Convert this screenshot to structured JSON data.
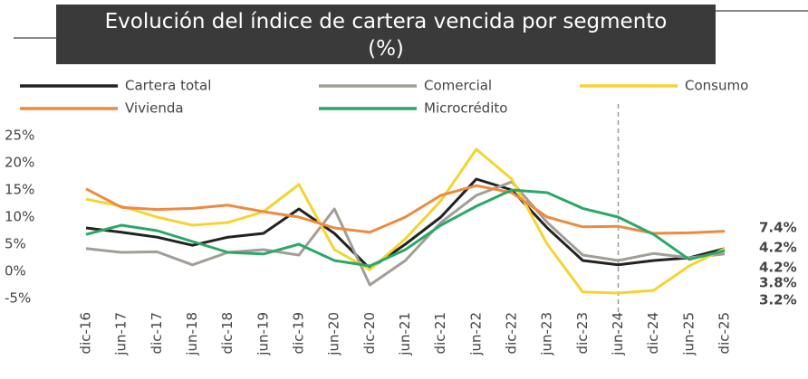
{
  "chart_data": {
    "type": "line",
    "title": "Evolución del índice de cartera vencida por segmento (%)",
    "categories": [
      "dic-16",
      "jun-17",
      "dic-17",
      "jun-18",
      "dic-18",
      "jun-19",
      "dic-19",
      "jun-20",
      "dic-20",
      "jun-21",
      "dic-21",
      "jun-22",
      "dic-22",
      "jun-23",
      "dic-23",
      "jun-24",
      "dic-24",
      "jun-25",
      "dic-25"
    ],
    "ylim": [
      -5,
      25
    ],
    "yticks": [
      {
        "value": 25,
        "label": "25%"
      },
      {
        "value": 20,
        "label": "20%"
      },
      {
        "value": 15,
        "label": "15%"
      },
      {
        "value": 10,
        "label": "10%"
      },
      {
        "value": 5,
        "label": "5%"
      },
      {
        "value": 0,
        "label": "0%"
      },
      {
        "value": -5,
        "label": "-5%"
      }
    ],
    "series": [
      {
        "name": "Cartera total",
        "color": "#222222",
        "values": [
          8,
          7.2,
          6.3,
          4.8,
          6.3,
          7,
          11.5,
          7,
          0.5,
          5,
          10,
          17,
          15,
          8,
          2,
          1.2,
          2,
          2.5,
          4.2
        ],
        "value_labels": [
          null,
          null,
          null,
          null,
          null,
          null,
          null,
          null,
          null,
          null,
          null,
          null,
          null,
          null,
          null,
          null,
          null,
          null,
          "4.2%"
        ]
      },
      {
        "name": "Comercial",
        "color": "#a39d97",
        "values": [
          4.2,
          3.5,
          3.6,
          1.2,
          3.5,
          4,
          3,
          11.5,
          -2.5,
          2,
          9,
          14,
          16.5,
          9,
          3,
          2,
          3.3,
          2.5,
          3.2
        ],
        "value_labels": [
          null,
          null,
          null,
          null,
          null,
          null,
          null,
          null,
          null,
          null,
          null,
          null,
          null,
          null,
          null,
          null,
          null,
          null,
          "3.2%"
        ]
      },
      {
        "name": "Consumo",
        "color": "#f5d431",
        "values": [
          13.3,
          12,
          10,
          8.5,
          9,
          11,
          16,
          4,
          0.3,
          6,
          13,
          22.5,
          17,
          5,
          -3.8,
          -4,
          -3.5,
          1,
          4.2
        ],
        "value_labels": [
          null,
          null,
          null,
          null,
          null,
          null,
          null,
          null,
          null,
          null,
          null,
          null,
          null,
          null,
          null,
          null,
          null,
          null,
          "4.2%"
        ]
      },
      {
        "name": "Vivienda",
        "color": "#ee8a3e",
        "values": [
          15.2,
          11.8,
          11.4,
          11.6,
          12.2,
          11,
          10,
          8,
          7.2,
          10,
          14,
          15.8,
          14.5,
          10,
          8.2,
          8.3,
          7,
          7.1,
          7.4
        ],
        "value_labels": [
          null,
          null,
          null,
          null,
          null,
          null,
          null,
          null,
          null,
          null,
          null,
          null,
          null,
          null,
          null,
          null,
          null,
          null,
          "7.4%"
        ]
      },
      {
        "name": "Microcrédito",
        "color": "#2aa86a",
        "values": [
          6.8,
          8.5,
          7.5,
          5.5,
          3.5,
          3.2,
          5,
          2,
          1,
          4,
          8.5,
          12,
          15,
          14.5,
          11.6,
          10,
          6.8,
          2.2,
          3.8
        ],
        "value_labels": [
          null,
          null,
          null,
          null,
          null,
          null,
          null,
          null,
          null,
          null,
          null,
          null,
          null,
          null,
          null,
          null,
          null,
          null,
          "3.8%"
        ]
      }
    ]
  }
}
